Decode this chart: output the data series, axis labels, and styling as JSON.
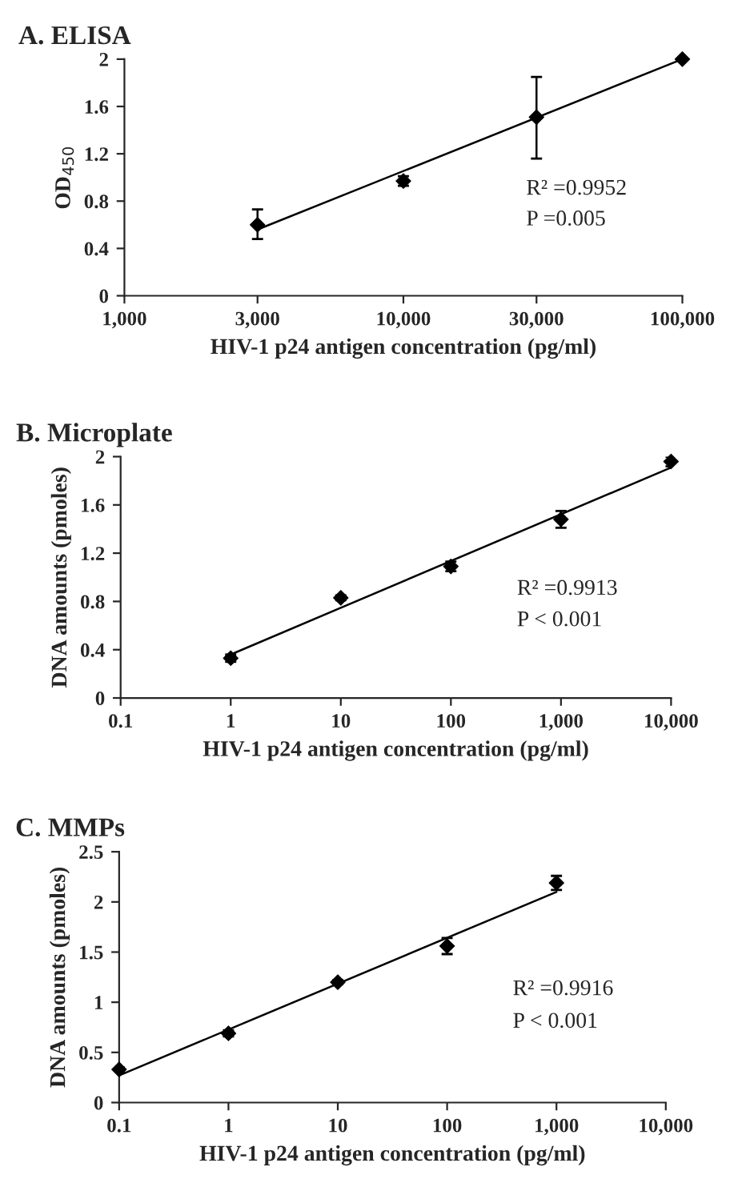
{
  "chart_data": [
    {
      "type": "scatter",
      "title": "A. ELISA",
      "xlabel": "HIV-1 p24 antigen concentration (pg/ml)",
      "ylabel": "OD$_{450}$",
      "log": "x",
      "grid": false,
      "legend": false,
      "xlim": [
        1000,
        100000
      ],
      "xticks": [
        {
          "value": 1000,
          "label": "1,000"
        },
        {
          "value": 3000,
          "label": "3,000"
        },
        {
          "value": 10000,
          "label": "10,000"
        },
        {
          "value": 30000,
          "label": "30,000"
        },
        {
          "value": 100000,
          "label": "100,000"
        }
      ],
      "ylim": [
        0,
        2
      ],
      "yticks": [
        0,
        0.4,
        0.8,
        1.2,
        1.6,
        2
      ],
      "series": [
        {
          "marker": "diamond",
          "color": "#000000",
          "x": [
            3000,
            10000,
            30000,
            100000
          ],
          "values": [
            0.6,
            0.97,
            1.51,
            2.0
          ],
          "errors": [
            [
              0.48,
              0.73
            ],
            0.04,
            [
              1.16,
              1.85
            ],
            0.01
          ]
        },
        {
          "type": "line",
          "color": "#000000",
          "x": [
            3000,
            100000
          ],
          "values": [
            0.56,
            2.0
          ]
        }
      ],
      "annotations": [
        "R² =0.9952",
        "P =0.005"
      ]
    },
    {
      "type": "scatter",
      "title": "B. Microplate",
      "xlabel": "HIV-1 p24 antigen concentration (pg/ml)",
      "ylabel": "DNA amounts (pmoles)",
      "log": "x",
      "grid": false,
      "legend": false,
      "xlim": [
        0.1,
        10000
      ],
      "xticks": [
        0.1,
        1,
        10,
        100,
        {
          "value": 1000,
          "label": "1,000"
        },
        {
          "value": 10000,
          "label": "10,000"
        }
      ],
      "ylim": [
        0,
        2
      ],
      "yticks": [
        0,
        0.4,
        0.8,
        1.2,
        1.6,
        2
      ],
      "series": [
        {
          "marker": "diamond",
          "color": "#000000",
          "x": [
            1,
            10,
            100,
            1000,
            10000
          ],
          "values": [
            0.33,
            0.83,
            1.09,
            1.48,
            1.96
          ],
          "errors": [
            0.03,
            0.02,
            0.04,
            0.07,
            0.04
          ]
        },
        {
          "type": "line",
          "color": "#000000",
          "x": [
            1,
            10000
          ],
          "values": [
            0.36,
            1.91
          ]
        }
      ],
      "annotations": [
        "R² =0.9913",
        "P < 0.001"
      ]
    },
    {
      "type": "scatter",
      "title": "C. MMPs",
      "xlabel": "HIV-1 p24 antigen concentration (pg/ml)",
      "ylabel": "DNA amounts (pmoles)",
      "log": "x",
      "grid": false,
      "legend": false,
      "xlim": [
        0.1,
        10000
      ],
      "xticks": [
        0.1,
        1,
        10,
        100,
        {
          "value": 1000,
          "label": "1,000"
        },
        {
          "value": 10000,
          "label": "10,000"
        }
      ],
      "ylim": [
        0,
        2.5
      ],
      "yticks": [
        0,
        0.5,
        1,
        1.5,
        2,
        2.5
      ],
      "series": [
        {
          "marker": "diamond",
          "color": "#000000",
          "x": [
            0.1,
            1,
            10,
            100,
            1000
          ],
          "values": [
            0.33,
            0.69,
            1.2,
            1.56,
            2.19
          ],
          "errors": [
            0.02,
            0.03,
            0.02,
            0.08,
            0.07
          ]
        },
        {
          "type": "line",
          "color": "#000000",
          "x": [
            0.1,
            1000
          ],
          "values": [
            0.27,
            2.1
          ]
        }
      ],
      "annotations": [
        "R² =0.9916",
        "P < 0.001"
      ]
    }
  ]
}
